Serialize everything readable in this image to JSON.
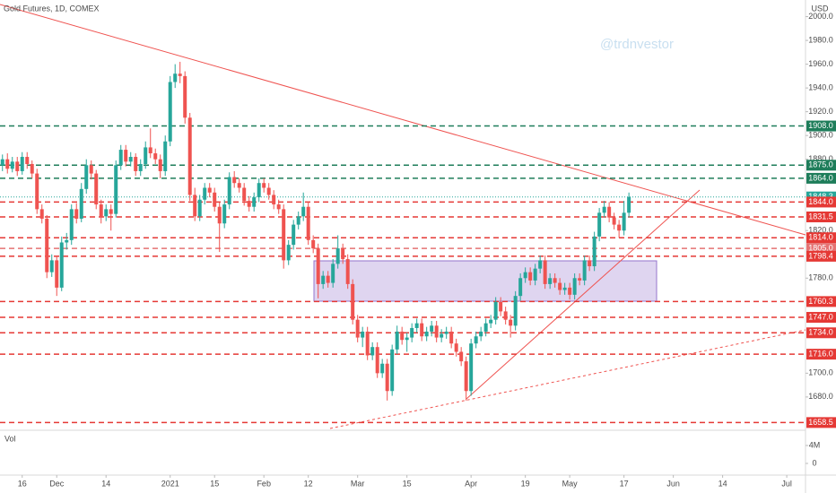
{
  "chart_data": {
    "type": "candlestick",
    "title": "Gold Futures, 1D, COMEX",
    "currency": "USD",
    "watermark": "@trdnvestor",
    "up_color": "#26a69a",
    "down_color": "#ef5350",
    "grid": false,
    "ylim": [
      1652,
      2014
    ],
    "yticks": [
      {
        "value": 1680,
        "label": "1680.0"
      },
      {
        "value": 1700,
        "label": "1700.0"
      },
      {
        "value": 1780,
        "label": "1780.0"
      },
      {
        "value": 1820,
        "label": "1820.0"
      },
      {
        "value": 1880,
        "label": "1880.0"
      },
      {
        "value": 1900,
        "label": "1900.0"
      },
      {
        "value": 1920,
        "label": "1920.0"
      },
      {
        "value": 1940,
        "label": "1940.0"
      },
      {
        "value": 1960,
        "label": "1960.0"
      },
      {
        "value": 1980,
        "label": "1980.0"
      },
      {
        "value": 2000,
        "label": "2000.0"
      }
    ],
    "xlim": [
      -0.5,
      162.8
    ],
    "xticks": [
      {
        "value": 4,
        "label": "16"
      },
      {
        "value": 11,
        "label": "Dec"
      },
      {
        "value": 21,
        "label": "14"
      },
      {
        "value": 34,
        "label": "2021"
      },
      {
        "value": 43,
        "label": "15"
      },
      {
        "value": 53,
        "label": "Feb"
      },
      {
        "value": 62,
        "label": "12"
      },
      {
        "value": 72,
        "label": "Mar"
      },
      {
        "value": 82,
        "label": "15"
      },
      {
        "value": 95,
        "label": "Apr"
      },
      {
        "value": 106,
        "label": "19"
      },
      {
        "value": 115,
        "label": "May"
      },
      {
        "value": 126,
        "label": "17"
      },
      {
        "value": 136,
        "label": "Jun"
      },
      {
        "value": 146,
        "label": "14"
      },
      {
        "value": 159,
        "label": "Jul"
      }
    ],
    "levels": [
      {
        "value": 1908,
        "label": "1908.0",
        "color": "#1e7d5a",
        "dash": "6,4"
      },
      {
        "value": 1875,
        "label": "1875.0",
        "color": "#1e7d5a",
        "dash": "6,4"
      },
      {
        "value": 1864,
        "label": "1864.0",
        "color": "#1e7d5a",
        "dash": "6,4"
      },
      {
        "value": 1848.3,
        "label": "1848.3",
        "color": "#26a69a",
        "dash": "1,2"
      },
      {
        "value": 1844,
        "label": "1844.0",
        "color": "#e53935",
        "dash": "6,4"
      },
      {
        "value": 1831.5,
        "label": "1831.5",
        "color": "#e53935",
        "dash": "6,4"
      },
      {
        "value": 1814,
        "label": "1814.0",
        "color": "#e53935",
        "dash": "6,4"
      },
      {
        "value": 1805,
        "label": "1805.0",
        "color": "#e57373",
        "dash": "6,4"
      },
      {
        "value": 1798.4,
        "label": "1798.4",
        "color": "#e53935",
        "dash": "6,4"
      },
      {
        "value": 1760.3,
        "label": "1760.3",
        "color": "#e53935",
        "dash": "6,4"
      },
      {
        "value": 1747,
        "label": "1747.0",
        "color": "#e53935",
        "dash": "6,4"
      },
      {
        "value": 1734,
        "label": "1734.0",
        "color": "#e53935",
        "dash": "6,4"
      },
      {
        "value": 1716,
        "label": "1716.0",
        "color": "#e53935",
        "dash": "6,4"
      },
      {
        "value": 1658.5,
        "label": "1658.5",
        "color": "#e53935",
        "dash": "6,4"
      }
    ],
    "volume_label": "Vol",
    "volume_ylim": [
      -2600000,
      7000000
    ],
    "volume_yticks": [
      {
        "value": 4000000,
        "label": "4M"
      },
      0
    ],
    "candles": [
      [
        1875,
        1884,
        1870,
        1880
      ],
      [
        1880,
        1885,
        1868,
        1872
      ],
      [
        1872,
        1882,
        1869,
        1878
      ],
      [
        1878,
        1882,
        1866,
        1870
      ],
      [
        1870,
        1886,
        1867,
        1882
      ],
      [
        1882,
        1886,
        1872,
        1876
      ],
      [
        1876,
        1879,
        1864,
        1868
      ],
      [
        1868,
        1872,
        1834,
        1838
      ],
      [
        1838,
        1842,
        1826,
        1830
      ],
      [
        1830,
        1833,
        1780,
        1785
      ],
      [
        1785,
        1800,
        1781,
        1795
      ],
      [
        1795,
        1799,
        1765,
        1772
      ],
      [
        1772,
        1815,
        1769,
        1810
      ],
      [
        1810,
        1818,
        1804,
        1812
      ],
      [
        1812,
        1842,
        1808,
        1838
      ],
      [
        1838,
        1843,
        1826,
        1830
      ],
      [
        1830,
        1860,
        1827,
        1855
      ],
      [
        1855,
        1880,
        1851,
        1875
      ],
      [
        1875,
        1879,
        1863,
        1868
      ],
      [
        1868,
        1871,
        1838,
        1842
      ],
      [
        1842,
        1846,
        1826,
        1832
      ],
      [
        1832,
        1842,
        1828,
        1838
      ],
      [
        1838,
        1842,
        1820,
        1834
      ],
      [
        1834,
        1879,
        1831,
        1875
      ],
      [
        1875,
        1892,
        1871,
        1888
      ],
      [
        1888,
        1892,
        1874,
        1878
      ],
      [
        1878,
        1886,
        1874,
        1882
      ],
      [
        1882,
        1885,
        1866,
        1870
      ],
      [
        1870,
        1880,
        1866,
        1876
      ],
      [
        1876,
        1895,
        1872,
        1890
      ],
      [
        1890,
        1906,
        1881,
        1885
      ],
      [
        1885,
        1889,
        1876,
        1880
      ],
      [
        1880,
        1884,
        1864,
        1870
      ],
      [
        1870,
        1900,
        1866,
        1895
      ],
      [
        1895,
        1950,
        1891,
        1945
      ],
      [
        1945,
        1960,
        1940,
        1952
      ],
      [
        1952,
        1962,
        1944,
        1950
      ],
      [
        1950,
        1954,
        1910,
        1915
      ],
      [
        1915,
        1919,
        1845,
        1850
      ],
      [
        1850,
        1856,
        1828,
        1832
      ],
      [
        1832,
        1850,
        1828,
        1846
      ],
      [
        1846,
        1860,
        1842,
        1856
      ],
      [
        1856,
        1860,
        1848,
        1852
      ],
      [
        1852,
        1856,
        1836,
        1840
      ],
      [
        1840,
        1844,
        1802,
        1826
      ],
      [
        1826,
        1846,
        1822,
        1842
      ],
      [
        1842,
        1869,
        1838,
        1865
      ],
      [
        1865,
        1870,
        1856,
        1860
      ],
      [
        1860,
        1864,
        1852,
        1856
      ],
      [
        1856,
        1860,
        1841,
        1845
      ],
      [
        1845,
        1849,
        1836,
        1840
      ],
      [
        1840,
        1852,
        1836,
        1848
      ],
      [
        1848,
        1864,
        1844,
        1860
      ],
      [
        1860,
        1864,
        1852,
        1856
      ],
      [
        1856,
        1860,
        1846,
        1850
      ],
      [
        1850,
        1854,
        1838,
        1842
      ],
      [
        1842,
        1846,
        1834,
        1838
      ],
      [
        1838,
        1842,
        1788,
        1795
      ],
      [
        1795,
        1812,
        1791,
        1808
      ],
      [
        1808,
        1829,
        1804,
        1825
      ],
      [
        1825,
        1836,
        1821,
        1832
      ],
      [
        1832,
        1852,
        1828,
        1840
      ],
      [
        1840,
        1844,
        1808,
        1812
      ],
      [
        1812,
        1816,
        1801,
        1805
      ],
      [
        1805,
        1809,
        1763,
        1775
      ],
      [
        1775,
        1786,
        1771,
        1782
      ],
      [
        1782,
        1786,
        1772,
        1776
      ],
      [
        1776,
        1796,
        1772,
        1792
      ],
      [
        1792,
        1816,
        1788,
        1805
      ],
      [
        1805,
        1809,
        1792,
        1796
      ],
      [
        1796,
        1800,
        1771,
        1775
      ],
      [
        1775,
        1779,
        1741,
        1745
      ],
      [
        1745,
        1749,
        1726,
        1730
      ],
      [
        1730,
        1739,
        1722,
        1735
      ],
      [
        1735,
        1739,
        1711,
        1715
      ],
      [
        1715,
        1726,
        1711,
        1722
      ],
      [
        1722,
        1726,
        1696,
        1700
      ],
      [
        1700,
        1712,
        1696,
        1708
      ],
      [
        1708,
        1712,
        1677,
        1685
      ],
      [
        1685,
        1724,
        1681,
        1720
      ],
      [
        1720,
        1740,
        1716,
        1735
      ],
      [
        1735,
        1739,
        1724,
        1728
      ],
      [
        1728,
        1734,
        1718,
        1730
      ],
      [
        1730,
        1742,
        1726,
        1738
      ],
      [
        1738,
        1746,
        1734,
        1742
      ],
      [
        1742,
        1746,
        1727,
        1731
      ],
      [
        1731,
        1739,
        1727,
        1735
      ],
      [
        1735,
        1744,
        1731,
        1740
      ],
      [
        1740,
        1744,
        1726,
        1730
      ],
      [
        1730,
        1737,
        1726,
        1733
      ],
      [
        1733,
        1739,
        1729,
        1735
      ],
      [
        1735,
        1739,
        1721,
        1725
      ],
      [
        1725,
        1729,
        1714,
        1718
      ],
      [
        1718,
        1722,
        1706,
        1710
      ],
      [
        1710,
        1714,
        1677,
        1685
      ],
      [
        1685,
        1729,
        1681,
        1725
      ],
      [
        1725,
        1735,
        1721,
        1731
      ],
      [
        1731,
        1739,
        1727,
        1735
      ],
      [
        1735,
        1746,
        1731,
        1742
      ],
      [
        1742,
        1749,
        1738,
        1745
      ],
      [
        1745,
        1764,
        1741,
        1760
      ],
      [
        1760,
        1764,
        1748,
        1752
      ],
      [
        1752,
        1756,
        1741,
        1745
      ],
      [
        1745,
        1749,
        1730,
        1740
      ],
      [
        1740,
        1769,
        1736,
        1765
      ],
      [
        1765,
        1784,
        1761,
        1780
      ],
      [
        1780,
        1789,
        1776,
        1785
      ],
      [
        1785,
        1789,
        1774,
        1778
      ],
      [
        1778,
        1792,
        1774,
        1788
      ],
      [
        1788,
        1799,
        1784,
        1795
      ],
      [
        1795,
        1799,
        1771,
        1775
      ],
      [
        1775,
        1784,
        1771,
        1780
      ],
      [
        1780,
        1784,
        1772,
        1776
      ],
      [
        1776,
        1780,
        1766,
        1770
      ],
      [
        1770,
        1776,
        1766,
        1772
      ],
      [
        1772,
        1776,
        1762,
        1766
      ],
      [
        1766,
        1784,
        1762,
        1780
      ],
      [
        1780,
        1784,
        1774,
        1778
      ],
      [
        1778,
        1799,
        1774,
        1795
      ],
      [
        1795,
        1799,
        1786,
        1790
      ],
      [
        1790,
        1819,
        1786,
        1815
      ],
      [
        1815,
        1839,
        1811,
        1835
      ],
      [
        1835,
        1845,
        1831,
        1840
      ],
      [
        1840,
        1844,
        1827,
        1831
      ],
      [
        1831,
        1835,
        1821,
        1825
      ],
      [
        1825,
        1829,
        1814,
        1820
      ],
      [
        1820,
        1845,
        1816,
        1835
      ],
      [
        1835,
        1852,
        1831,
        1848.3
      ]
    ]
  }
}
